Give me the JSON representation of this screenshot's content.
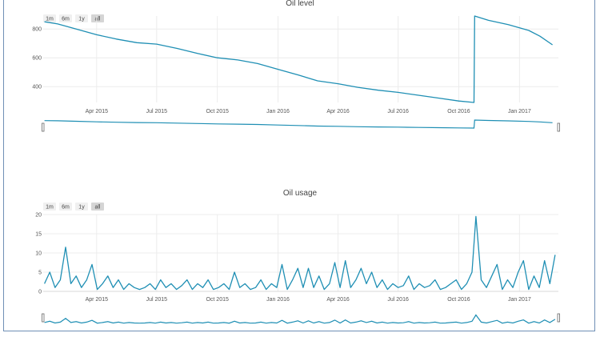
{
  "colors": {
    "line": "#1f8fb4",
    "grid": "#ececec",
    "frame": "#6f8fb5"
  },
  "chart_data": [
    {
      "type": "line",
      "title": "Oil level",
      "x_tick_labels": [
        "Apr 2015",
        "Jul 2015",
        "Oct 2015",
        "Jan 2016",
        "Apr 2016",
        "Jul 2016",
        "Oct 2016",
        "Jan 2017"
      ],
      "y_tick_labels": [
        "400",
        "600",
        "800"
      ],
      "range_buttons": [
        "1m",
        "6m",
        "1y",
        "all"
      ],
      "active_button": "all",
      "x_range": [
        "2015-01-10",
        "2017-03-01"
      ],
      "y_range": [
        290,
        890
      ],
      "range_slider": true,
      "grid": true,
      "series": [
        {
          "x": [
            "2015-01-12",
            "2015-02-01",
            "2015-03-01",
            "2015-04-01",
            "2015-05-01",
            "2015-06-01",
            "2015-07-01",
            "2015-08-01",
            "2015-09-01",
            "2015-10-01",
            "2015-11-01",
            "2015-12-01",
            "2016-01-01",
            "2016-02-01",
            "2016-03-01",
            "2016-04-01",
            "2016-05-01",
            "2016-06-01",
            "2016-07-01",
            "2016-08-01",
            "2016-09-01",
            "2016-10-01",
            "2016-10-24",
            "2016-10-25",
            "2016-11-15",
            "2016-12-15",
            "2017-01-15",
            "2017-02-01",
            "2017-02-20"
          ],
          "values": [
            850,
            835,
            800,
            760,
            730,
            705,
            695,
            665,
            630,
            600,
            585,
            560,
            520,
            480,
            440,
            420,
            395,
            375,
            360,
            340,
            320,
            300,
            290,
            890,
            860,
            830,
            790,
            750,
            690
          ]
        }
      ]
    },
    {
      "type": "line",
      "title": "Oil usage",
      "x_tick_labels": [
        "Apr 2015",
        "Jul 2015",
        "Oct 2015",
        "Jan 2016",
        "Apr 2016",
        "Jul 2016",
        "Oct 2016",
        "Jan 2017"
      ],
      "y_tick_labels": [
        "0",
        "5",
        "10",
        "15",
        "20"
      ],
      "range_buttons": [
        "1m",
        "6m",
        "1y",
        "all"
      ],
      "active_button": "all",
      "x_range": [
        "2015-01-10",
        "2017-03-01"
      ],
      "y_range": [
        0,
        20
      ],
      "range_slider": true,
      "grid": true,
      "series": [
        {
          "x": [
            "2015-01-12",
            "2015-01-20",
            "2015-01-28",
            "2015-02-05",
            "2015-02-13",
            "2015-02-21",
            "2015-03-01",
            "2015-03-09",
            "2015-03-17",
            "2015-03-25",
            "2015-04-02",
            "2015-04-10",
            "2015-04-18",
            "2015-04-26",
            "2015-05-04",
            "2015-05-12",
            "2015-05-20",
            "2015-05-28",
            "2015-06-05",
            "2015-06-13",
            "2015-06-21",
            "2015-06-29",
            "2015-07-07",
            "2015-07-15",
            "2015-07-23",
            "2015-07-31",
            "2015-08-08",
            "2015-08-16",
            "2015-08-24",
            "2015-09-01",
            "2015-09-09",
            "2015-09-17",
            "2015-09-25",
            "2015-10-03",
            "2015-10-11",
            "2015-10-19",
            "2015-10-27",
            "2015-11-04",
            "2015-11-12",
            "2015-11-20",
            "2015-11-28",
            "2015-12-06",
            "2015-12-14",
            "2015-12-22",
            "2015-12-30",
            "2016-01-07",
            "2016-01-15",
            "2016-01-23",
            "2016-01-31",
            "2016-02-08",
            "2016-02-16",
            "2016-02-24",
            "2016-03-03",
            "2016-03-11",
            "2016-03-19",
            "2016-03-27",
            "2016-04-04",
            "2016-04-12",
            "2016-04-20",
            "2016-04-28",
            "2016-05-06",
            "2016-05-14",
            "2016-05-22",
            "2016-05-30",
            "2016-06-07",
            "2016-06-15",
            "2016-06-23",
            "2016-07-01",
            "2016-07-09",
            "2016-07-17",
            "2016-07-25",
            "2016-08-02",
            "2016-08-10",
            "2016-08-18",
            "2016-08-26",
            "2016-09-03",
            "2016-09-11",
            "2016-09-19",
            "2016-09-27",
            "2016-10-05",
            "2016-10-13",
            "2016-10-21",
            "2016-10-27",
            "2016-11-04",
            "2016-11-12",
            "2016-11-20",
            "2016-11-28",
            "2016-12-06",
            "2016-12-14",
            "2016-12-22",
            "2016-12-30",
            "2017-01-07",
            "2017-01-15",
            "2017-01-23",
            "2017-01-31",
            "2017-02-08",
            "2017-02-16",
            "2017-02-24"
          ],
          "values": [
            2,
            5,
            1,
            3,
            11.5,
            2,
            4,
            1,
            3,
            7,
            0.5,
            2,
            4,
            1,
            3,
            0.5,
            2,
            1,
            0.5,
            1,
            2,
            0.5,
            3,
            1,
            2,
            0.5,
            1.5,
            3,
            0.5,
            2,
            1,
            3,
            0.5,
            1,
            2,
            0.5,
            5,
            1,
            2,
            0.5,
            1,
            3,
            0.5,
            2,
            1,
            7,
            0.5,
            3,
            6,
            1,
            6,
            1,
            4,
            0.5,
            2,
            7.5,
            1,
            8,
            1,
            3,
            6,
            2,
            5,
            1,
            3,
            0.5,
            2,
            1,
            1.5,
            4,
            0.5,
            2,
            1,
            1.5,
            3,
            0.5,
            1,
            2,
            3,
            0.5,
            2,
            5,
            19.5,
            3,
            1,
            4,
            7,
            0.5,
            3,
            1,
            5,
            8,
            0.5,
            4,
            1,
            8,
            2,
            9.5
          ]
        }
      ]
    }
  ]
}
